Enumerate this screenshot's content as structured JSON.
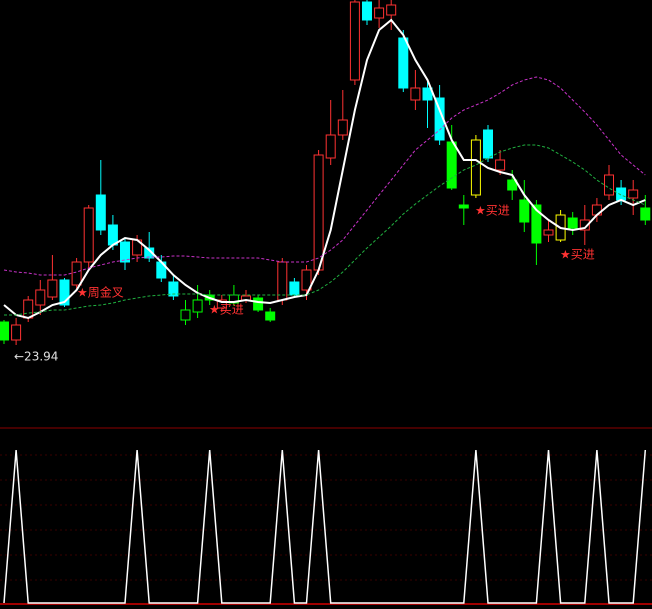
{
  "chart_data": {
    "type": "candlestick",
    "open": [
      24.63,
      24.09,
      24.75,
      25.14,
      25.38,
      25.89,
      25.74,
      26.43,
      28.44,
      27.54,
      27.03,
      26.64,
      26.85,
      26.43,
      25.83,
      24.69,
      24.93,
      25.44,
      25.05,
      25.2,
      25.29,
      25.35,
      24.93,
      25.29,
      25.83,
      25.59,
      26.19,
      29.55,
      30.24,
      31.89,
      34.23,
      33.75,
      33.84,
      33.15,
      31.29,
      31.65,
      31.35,
      30.03,
      28.14,
      28.44,
      30.39,
      29.19,
      28.89,
      28.29,
      28.14,
      27.24,
      27.09,
      27.75,
      27.39,
      27.84,
      28.44,
      28.65,
      28.35,
      28.05
    ],
    "close": [
      24.09,
      24.54,
      25.29,
      25.59,
      25.89,
      25.14,
      26.43,
      28.05,
      27.39,
      26.94,
      26.43,
      27.09,
      26.55,
      25.95,
      25.41,
      24.99,
      25.29,
      25.29,
      25.29,
      25.44,
      25.41,
      24.99,
      24.69,
      26.43,
      25.44,
      26.19,
      29.64,
      30.24,
      30.69,
      34.23,
      33.69,
      34.05,
      34.14,
      31.65,
      31.65,
      31.29,
      30.09,
      28.65,
      28.05,
      30.09,
      29.55,
      29.49,
      28.59,
      27.63,
      27.0,
      27.39,
      27.84,
      27.45,
      27.69,
      28.14,
      29.04,
      28.29,
      28.59,
      27.69
    ],
    "high": [
      24.69,
      24.75,
      25.41,
      25.89,
      26.64,
      25.95,
      26.55,
      28.14,
      29.49,
      27.84,
      27.15,
      27.24,
      27.33,
      26.64,
      26.04,
      25.29,
      25.74,
      25.59,
      25.44,
      25.74,
      25.59,
      25.44,
      25.05,
      26.55,
      25.95,
      26.34,
      29.79,
      31.29,
      31.59,
      34.29,
      34.29,
      34.29,
      34.29,
      33.39,
      32.19,
      31.89,
      31.74,
      30.54,
      28.44,
      30.24,
      30.54,
      29.79,
      29.19,
      28.89,
      28.29,
      27.69,
      27.99,
      27.93,
      28.14,
      28.35,
      29.34,
      28.89,
      28.89,
      28.44
    ],
    "low": [
      23.97,
      23.94,
      24.63,
      24.84,
      25.29,
      25.08,
      25.59,
      26.25,
      27.24,
      26.79,
      26.19,
      26.43,
      26.43,
      25.83,
      25.29,
      24.54,
      24.75,
      25.14,
      24.93,
      25.11,
      25.2,
      24.93,
      24.63,
      25.14,
      25.35,
      25.29,
      26.04,
      29.34,
      30.09,
      31.74,
      33.54,
      33.45,
      33.39,
      31.53,
      30.99,
      30.45,
      29.94,
      28.59,
      27.54,
      28.35,
      29.43,
      29.04,
      28.29,
      27.33,
      26.34,
      27.03,
      27.03,
      27.24,
      26.94,
      27.63,
      28.29,
      28.14,
      27.84,
      27.54
    ],
    "colors": [
      "#00ff00",
      "#ff3232",
      "#ff3232",
      "#ff3232",
      "#ff3232",
      "#00ffff",
      "#ff3232",
      "#ff3232",
      "#00ffff",
      "#00ffff",
      "#00ffff",
      "#ff3232",
      "#00ffff",
      "#00ffff",
      "#00ffff",
      "#00ff00",
      "#00ff00",
      "#00ff00",
      "#ff3232",
      "#00ff00",
      "#ff3232",
      "#00ff00",
      "#00ff00",
      "#ff3232",
      "#00ffff",
      "#ff3232",
      "#ff3232",
      "#ff3232",
      "#ff3232",
      "#ff3232",
      "#00ffff",
      "#ff3232",
      "#ff3232",
      "#00ffff",
      "#ff3232",
      "#00ffff",
      "#00ffff",
      "#00ff00",
      "#00ff00",
      "#ffff00",
      "#00ffff",
      "#ff3232",
      "#00ff00",
      "#00ff00",
      "#00ff00",
      "#ff3232",
      "#ffff00",
      "#00ff00",
      "#ff3232",
      "#ff3232",
      "#ff3232",
      "#00ffff",
      "#ff3232",
      "#00ff00"
    ],
    "ma": [
      {
        "color": "#ffffff",
        "dashed": false,
        "values": [
          25.14,
          24.84,
          24.75,
          24.93,
          25.14,
          25.23,
          25.59,
          26.19,
          26.64,
          26.94,
          27.15,
          27.09,
          26.79,
          26.43,
          26.04,
          25.74,
          25.5,
          25.35,
          25.23,
          25.23,
          25.29,
          25.23,
          25.2,
          25.29,
          25.38,
          25.44,
          26.19,
          27.39,
          29.19,
          30.99,
          32.49,
          33.39,
          33.69,
          33.24,
          32.49,
          31.89,
          30.99,
          30.09,
          29.49,
          29.49,
          29.25,
          29.13,
          29.04,
          28.44,
          27.99,
          27.69,
          27.45,
          27.39,
          27.45,
          27.84,
          28.14,
          28.29,
          28.14,
          28.29
        ]
      },
      {
        "color": "#c832c8",
        "dashed": true,
        "values": [
          26.19,
          26.13,
          26.1,
          26.04,
          26.04,
          26.04,
          26.13,
          26.25,
          26.34,
          26.43,
          26.49,
          26.55,
          26.58,
          26.58,
          26.61,
          26.61,
          26.58,
          26.55,
          26.55,
          26.55,
          26.55,
          26.55,
          26.49,
          26.43,
          26.43,
          26.43,
          26.55,
          26.79,
          27.09,
          27.54,
          27.99,
          28.44,
          28.89,
          29.34,
          29.79,
          30.09,
          30.39,
          30.75,
          30.99,
          31.14,
          31.29,
          31.5,
          31.74,
          31.89,
          31.98,
          31.89,
          31.65,
          31.29,
          30.93,
          30.54,
          30.09,
          29.64,
          29.34,
          29.04
        ]
      },
      {
        "color": "#20b040",
        "dashed": true,
        "values": [
          24.84,
          24.84,
          24.9,
          24.93,
          24.99,
          24.99,
          25.05,
          25.11,
          25.14,
          25.2,
          25.29,
          25.35,
          25.41,
          25.44,
          25.47,
          25.47,
          25.47,
          25.44,
          25.44,
          25.44,
          25.44,
          25.44,
          25.44,
          25.44,
          25.44,
          25.44,
          25.59,
          25.83,
          26.13,
          26.49,
          26.85,
          27.18,
          27.51,
          27.87,
          28.17,
          28.44,
          28.71,
          28.95,
          29.19,
          29.34,
          29.55,
          29.73,
          29.85,
          29.94,
          29.94,
          29.85,
          29.64,
          29.43,
          29.19,
          28.89,
          28.65,
          28.44,
          28.29,
          28.14
        ]
      }
    ],
    "indicator": {
      "color": "#ffffff",
      "values": [
        0,
        1,
        0,
        0,
        0,
        0,
        0,
        0,
        0,
        0,
        0,
        1,
        0,
        0,
        0,
        0,
        0,
        1,
        0,
        0,
        0,
        0,
        0,
        1,
        0,
        0,
        1,
        0,
        0,
        0,
        0,
        0,
        0,
        0,
        0,
        0,
        0,
        0,
        0,
        1,
        0,
        0,
        0,
        0,
        0,
        1,
        0,
        0,
        0,
        1,
        0,
        0,
        0,
        1
      ]
    },
    "annotations": [
      "★周金叉",
      "★买进",
      "★买进",
      "★买进",
      "←23.94"
    ]
  }
}
